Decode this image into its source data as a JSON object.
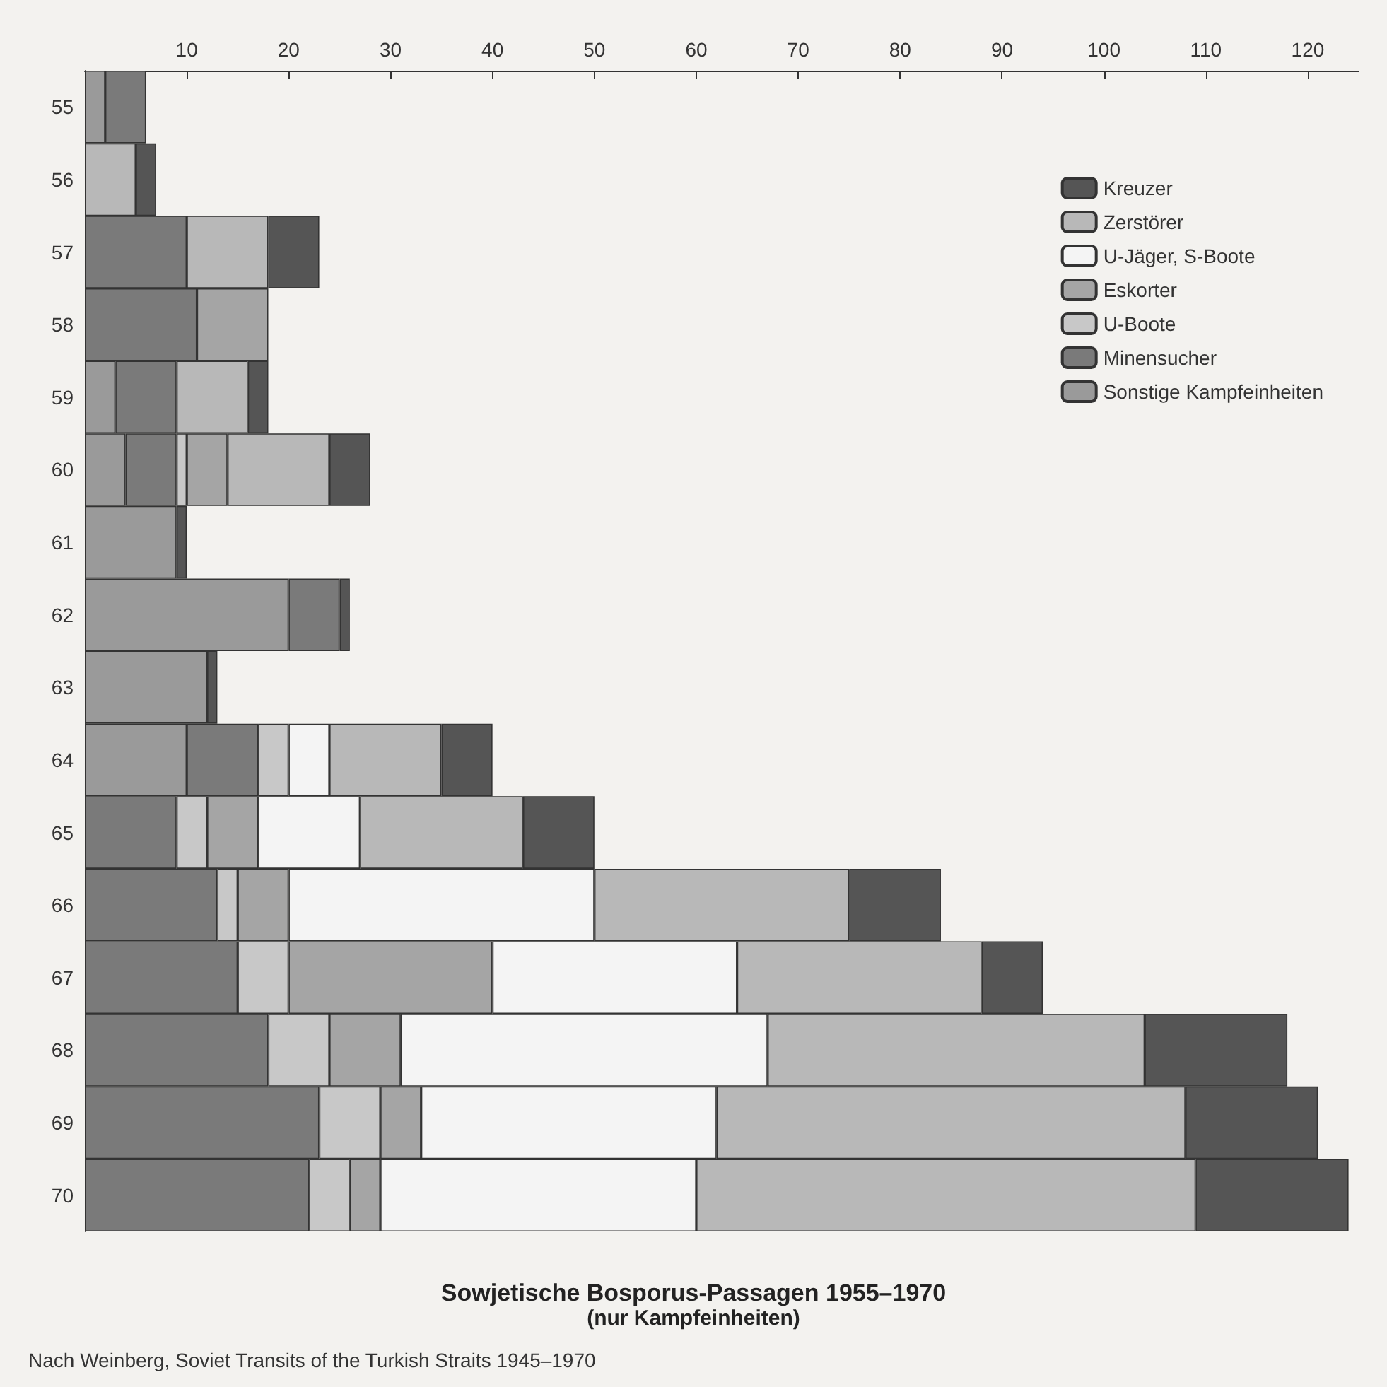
{
  "chart_data": {
    "type": "bar",
    "orientation": "horizontal",
    "stacked": true,
    "title": "Sowjetische Bosporus-Passagen 1955–1970",
    "subtitle": "(nur Kampfeinheiten)",
    "annotations": [
      "Nach Weinberg, Soviet Transits of the Turkish Straits 1945–1970"
    ],
    "categories": [
      "55",
      "56",
      "57",
      "58",
      "59",
      "60",
      "61",
      "62",
      "63",
      "64",
      "65",
      "66",
      "67",
      "68",
      "69",
      "70"
    ],
    "series": [
      {
        "name": "Sonstige Kampfeinheiten",
        "color": "#9a9a9a",
        "values": [
          2,
          0,
          0,
          0,
          3,
          4,
          9,
          20,
          12,
          10,
          0,
          0,
          0,
          0,
          0,
          0
        ]
      },
      {
        "name": "Minensucher",
        "color": "#7a7a7a",
        "values": [
          4,
          0,
          10,
          11,
          6,
          5,
          0,
          5,
          0,
          7,
          9,
          13,
          15,
          18,
          23,
          22
        ]
      },
      {
        "name": "U-Boote",
        "color": "#c8c8c8",
        "values": [
          0,
          0,
          0,
          0,
          0,
          1,
          0,
          0,
          0,
          3,
          3,
          2,
          5,
          6,
          6,
          4
        ]
      },
      {
        "name": "Eskorter",
        "color": "#a5a5a5",
        "values": [
          0,
          0,
          0,
          7,
          0,
          4,
          0,
          0,
          0,
          0,
          5,
          5,
          20,
          7,
          4,
          3
        ]
      },
      {
        "name": "U-Jäger, S-Boote",
        "color": "#f4f4f4",
        "values": [
          0,
          0,
          0,
          0,
          0,
          0,
          0,
          0,
          0,
          4,
          10,
          30,
          24,
          36,
          29,
          31
        ]
      },
      {
        "name": "Zerstörer",
        "color": "#b8b8b8",
        "values": [
          0,
          5,
          8,
          0,
          7,
          10,
          0,
          0,
          0,
          11,
          16,
          25,
          24,
          37,
          46,
          49
        ]
      },
      {
        "name": "Kreuzer",
        "color": "#555555",
        "values": [
          0,
          2,
          5,
          0,
          2,
          4,
          1,
          1,
          1,
          5,
          7,
          9,
          6,
          14,
          13,
          15
        ]
      }
    ],
    "xlim": [
      0,
      125
    ],
    "xticks": [
      10,
      20,
      30,
      40,
      50,
      60,
      70,
      80,
      90,
      100,
      110,
      120
    ],
    "grid": false,
    "legend": "top right"
  }
}
